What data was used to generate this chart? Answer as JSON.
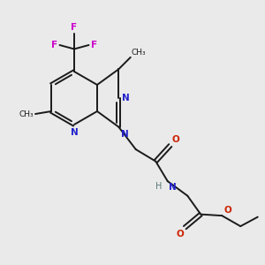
{
  "background_color": "#eaeaea",
  "bond_color": "#1a1a1a",
  "nitrogen_color": "#2222cc",
  "oxygen_color": "#cc2200",
  "fluorine_color": "#cc00cc",
  "lw": 1.4,
  "figsize": [
    3.0,
    3.0
  ],
  "dpi": 100,
  "xlim": [
    0,
    10
  ],
  "ylim": [
    0,
    10
  ]
}
